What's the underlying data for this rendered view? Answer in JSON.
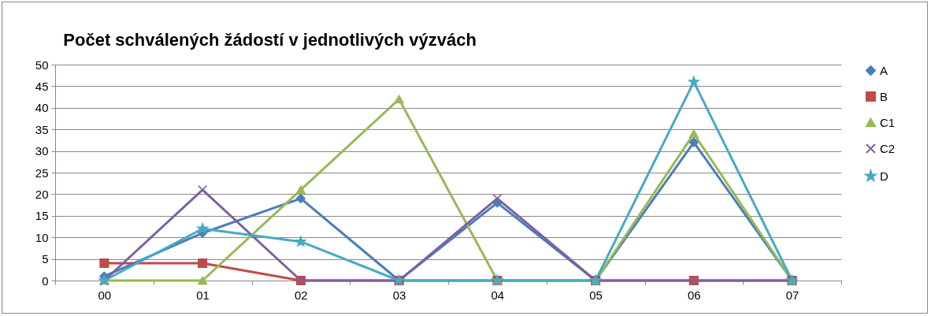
{
  "chart_data": {
    "type": "line",
    "title": "Počet schválených žádostí v jednotlivých výzvách",
    "categories": [
      "00",
      "01",
      "02",
      "03",
      "04",
      "05",
      "06",
      "07"
    ],
    "series": [
      {
        "name": "A",
        "color": "#4a7ebb",
        "marker": "diamond",
        "values": [
          1,
          11,
          19,
          0,
          18,
          0,
          32,
          0
        ]
      },
      {
        "name": "B",
        "color": "#be4b48",
        "marker": "square",
        "values": [
          4,
          4,
          0,
          0,
          0,
          0,
          0,
          0
        ]
      },
      {
        "name": "C1",
        "color": "#98b954",
        "marker": "triangle",
        "values": [
          0,
          0,
          21,
          42,
          0,
          0,
          34,
          0
        ]
      },
      {
        "name": "C2",
        "color": "#7d60a0",
        "marker": "cross",
        "values": [
          0,
          21,
          0,
          0,
          19,
          0,
          0,
          0
        ]
      },
      {
        "name": "D",
        "color": "#46aac5",
        "marker": "star",
        "values": [
          0,
          12,
          9,
          0,
          0,
          0,
          46,
          0
        ]
      }
    ],
    "ylim": [
      0,
      50
    ],
    "yticks": [
      0,
      5,
      10,
      15,
      20,
      25,
      30,
      35,
      40,
      45,
      50
    ],
    "grid": "y",
    "legend": "right"
  }
}
